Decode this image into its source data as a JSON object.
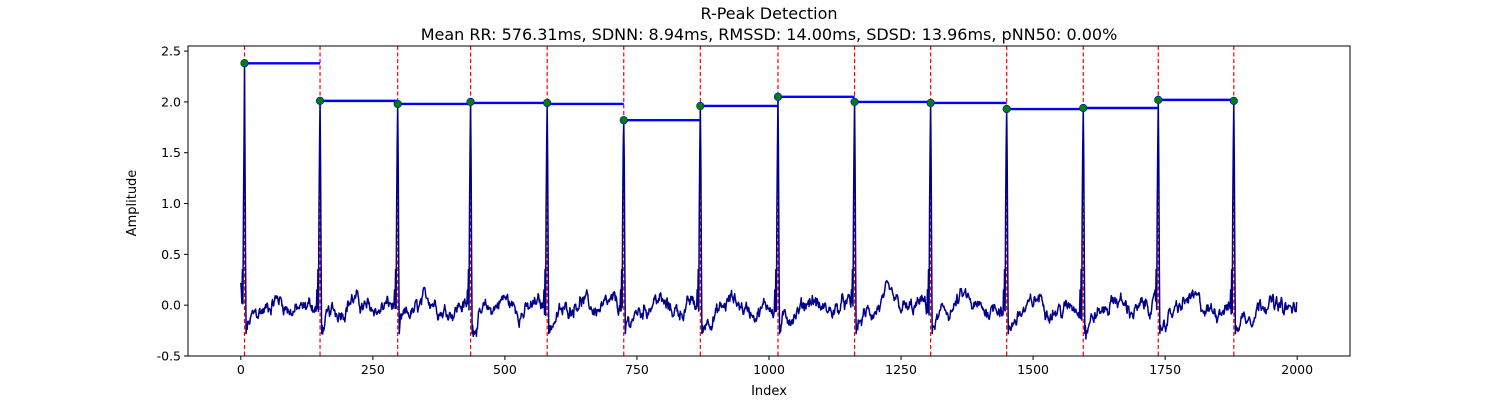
{
  "chart_data": {
    "type": "line",
    "title": "R-Peak Detection",
    "subtitle": "Mean RR: 576.31ms, SDNN: 8.94ms, RMSSD: 14.00ms, SDSD: 13.96ms, pNN50: 0.00%",
    "xlabel": "Index",
    "ylabel": "Amplitude",
    "xlim": [
      -100,
      2100
    ],
    "ylim": [
      -0.5,
      2.55
    ],
    "xticks": [
      0,
      250,
      500,
      750,
      1000,
      1250,
      1500,
      1750,
      2000
    ],
    "yticks": [
      -0.5,
      0.0,
      0.5,
      1.0,
      1.5,
      2.0,
      2.5
    ],
    "grid": false,
    "colors": {
      "signal": "#00008b",
      "peak_marker": "#008000",
      "peak_line": "#ff0000",
      "rr_segment": "#0000ff"
    },
    "signal_length": 2000,
    "r_peaks": {
      "x": [
        7,
        150,
        297,
        435,
        580,
        725,
        870,
        1017,
        1162,
        1306,
        1450,
        1595,
        1737,
        1880
      ],
      "y": [
        2.38,
        2.01,
        1.98,
        2.0,
        1.99,
        1.82,
        1.96,
        2.05,
        2.0,
        1.99,
        1.93,
        1.94,
        2.02,
        2.01
      ]
    },
    "rr_segments": [
      {
        "x0": 7,
        "x1": 150,
        "y": 2.38
      },
      {
        "x0": 150,
        "x1": 297,
        "y": 2.01
      },
      {
        "x0": 297,
        "x1": 435,
        "y": 1.98
      },
      {
        "x0": 435,
        "x1": 580,
        "y": 1.99
      },
      {
        "x0": 580,
        "x1": 725,
        "y": 1.98
      },
      {
        "x0": 725,
        "x1": 870,
        "y": 1.82
      },
      {
        "x0": 870,
        "x1": 1017,
        "y": 1.96
      },
      {
        "x0": 1017,
        "x1": 1162,
        "y": 2.05
      },
      {
        "x0": 1162,
        "x1": 1306,
        "y": 2.0
      },
      {
        "x0": 1306,
        "x1": 1450,
        "y": 1.99
      },
      {
        "x0": 1450,
        "x1": 1595,
        "y": 1.93
      },
      {
        "x0": 1595,
        "x1": 1737,
        "y": 1.94
      },
      {
        "x0": 1737,
        "x1": 1880,
        "y": 2.02
      }
    ],
    "signal_start_value": 0.22,
    "signal_end_value": 0.03
  }
}
